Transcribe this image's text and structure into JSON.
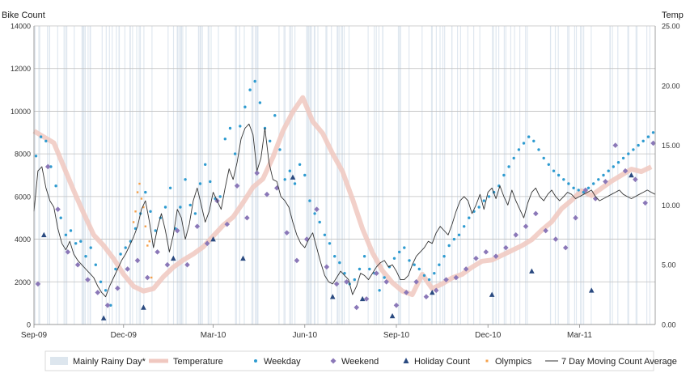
{
  "chart_data": {
    "type": "line",
    "y_left_label": "Bike Count",
    "y_right_label": "Temp",
    "y_left_ticks": [
      "0",
      "2000",
      "4000",
      "6000",
      "8000",
      "10000",
      "12000",
      "14000"
    ],
    "y_right_ticks": [
      "0.00",
      "5.00",
      "10.00",
      "15.00",
      "20.00",
      "25.00"
    ],
    "x_ticks": [
      "Sep-09",
      "Dec-09",
      "Mar-10",
      "Jun-10",
      "Sep-10",
      "Dec-10",
      "Mar-11"
    ],
    "ylim_left": [
      0,
      14000
    ],
    "ylim_right": [
      0,
      25
    ],
    "grid": "horizontal",
    "legend_position": "bottom",
    "colors": {
      "rainy": "#dde6ee",
      "temperature": "#f0c8c0",
      "weekday": "#2e9bd0",
      "weekend": "#8b78b8",
      "holiday": "#2a4a80",
      "olympics": "#f5a04a",
      "moving_avg": "#333333"
    },
    "legend": [
      {
        "label": "Mainly Rainy Day*",
        "key": "rainy"
      },
      {
        "label": "Temperature",
        "key": "temperature"
      },
      {
        "label": "Weekday",
        "key": "weekday"
      },
      {
        "label": "Weekend",
        "key": "weekend"
      },
      {
        "label": "Holiday Count",
        "key": "holiday"
      },
      {
        "label": "Olympics",
        "key": "olympics"
      },
      {
        "label": "7 Day Moving Count Average",
        "key": "moving_avg"
      }
    ],
    "series": [
      {
        "name": "7 Day Moving Count Average",
        "axis": "left",
        "x": [
          0,
          4,
          8,
          12,
          16,
          20,
          24,
          28,
          32,
          36,
          40,
          44,
          48,
          52,
          56,
          60,
          64,
          68,
          72,
          76,
          80,
          84,
          88,
          92,
          96,
          100,
          104,
          108,
          112,
          116,
          120,
          124,
          128,
          132,
          136,
          140,
          144,
          148,
          152,
          156,
          160,
          164,
          168,
          172,
          176,
          180,
          184,
          188,
          192,
          196,
          200,
          204,
          208,
          212,
          216,
          220,
          224,
          228,
          232,
          236,
          240,
          244,
          248,
          252,
          256,
          260,
          264,
          268,
          272,
          276,
          280,
          284,
          288,
          292,
          296,
          300,
          304,
          308,
          312,
          316,
          320,
          324,
          328,
          332,
          336,
          340,
          344,
          348,
          352,
          356,
          360,
          364,
          368,
          372,
          376,
          380,
          384,
          388,
          392,
          396,
          400,
          404,
          408,
          412,
          416,
          420,
          424,
          428,
          432,
          436,
          440,
          444,
          448,
          452,
          456,
          460,
          464,
          468,
          472,
          476,
          480,
          484,
          488,
          492,
          496,
          500,
          504,
          508,
          512,
          516,
          520,
          524,
          528,
          532,
          536,
          540,
          544,
          548,
          552,
          556,
          560,
          564,
          568,
          572,
          576,
          580,
          584,
          588,
          592,
          596,
          600,
          604,
          608,
          612,
          616,
          620,
          624
        ],
        "values": [
          5300,
          7200,
          7400,
          6400,
          5800,
          5500,
          4500,
          3800,
          3500,
          3900,
          3300,
          3000,
          2800,
          2600,
          2400,
          2200,
          1800,
          1500,
          1300,
          1800,
          2200,
          2600,
          3000,
          3300,
          3700,
          4100,
          4600,
          5400,
          5800,
          4800,
          3600,
          4500,
          5200,
          4400,
          3400,
          4200,
          5400,
          5000,
          4000,
          4700,
          5800,
          6400,
          5600,
          4800,
          5300,
          6200,
          5800,
          5400,
          6400,
          7300,
          6800,
          7600,
          8700,
          9200,
          9400,
          8900,
          7200,
          7800,
          9200,
          7600,
          6800,
          6700,
          6000,
          5800,
          5500,
          4800,
          4200,
          3800,
          3600,
          4000,
          4300,
          3600,
          2900,
          2300,
          2000,
          1900,
          2200,
          2500,
          2300,
          2100,
          1400,
          1800,
          2400,
          2300,
          2100,
          2400,
          2700,
          2900,
          3000,
          2700,
          2800,
          2500,
          2100,
          2100,
          2300,
          2800,
          3200,
          3400,
          3600,
          3900,
          3800,
          4300,
          4600,
          4400,
          4200,
          4700,
          5300,
          5800,
          6000,
          5800,
          5200,
          5600,
          6100,
          5400,
          6200,
          6400,
          5900,
          6500,
          6000,
          5600,
          6300,
          5800,
          5400,
          5000,
          5700,
          6200,
          6400,
          6000,
          5800,
          6100,
          6300,
          6000,
          5800,
          6000,
          6200,
          6100,
          5900,
          6000,
          6100,
          6200,
          6300,
          6000,
          5800,
          5900,
          6000,
          6100,
          6200,
          6300,
          6100,
          6000,
          5900,
          6000,
          6100,
          6200,
          6300,
          6200,
          6100
        ]
      },
      {
        "name": "Temperature",
        "axis": "right",
        "x": [
          0,
          10,
          20,
          30,
          40,
          50,
          60,
          70,
          80,
          90,
          100,
          110,
          120,
          130,
          140,
          150,
          160,
          170,
          180,
          190,
          200,
          210,
          220,
          230,
          240,
          250,
          260,
          270,
          280,
          290,
          300,
          310,
          320,
          330,
          340,
          350,
          360,
          370,
          380,
          390,
          400,
          410,
          420,
          430,
          440,
          450,
          460,
          470,
          480,
          490,
          500,
          510,
          520,
          530,
          540,
          550,
          560,
          570,
          580,
          590,
          600,
          610,
          620
        ],
        "values": [
          16.2,
          15.7,
          15.2,
          13.2,
          11.2,
          9.3,
          7.5,
          6.6,
          5.5,
          4.2,
          3.2,
          2.8,
          3.0,
          4.0,
          4.8,
          5.4,
          5.9,
          6.5,
          7.4,
          8.3,
          9.0,
          10.2,
          11.5,
          12.2,
          14.0,
          16.2,
          17.8,
          19.0,
          17.0,
          16.0,
          14.3,
          12.8,
          10.5,
          8.0,
          6.0,
          4.5,
          3.5,
          2.8,
          2.5,
          4.2,
          3.0,
          3.4,
          3.9,
          4.2,
          4.8,
          5.3,
          5.4,
          5.8,
          6.2,
          6.6,
          7.1,
          7.9,
          8.6,
          9.7,
          10.4,
          11.2,
          10.8,
          11.4,
          12.0,
          12.5,
          13.0,
          12.8,
          13.2
        ]
      },
      {
        "name": "Weekday",
        "axis": "left",
        "x": [
          2,
          7,
          12,
          17,
          22,
          27,
          32,
          37,
          42,
          47,
          52,
          57,
          62,
          67,
          72,
          77,
          82,
          87,
          92,
          97,
          102,
          107,
          112,
          117,
          122,
          127,
          132,
          137,
          142,
          147,
          152,
          157,
          162,
          167,
          172,
          177,
          182,
          187,
          192,
          197,
          202,
          207,
          212,
          217,
          222,
          227,
          232,
          237,
          242,
          247,
          252,
          257,
          262,
          267,
          272,
          277,
          282,
          287,
          292,
          297,
          302,
          307,
          312,
          317,
          322,
          327,
          332,
          337,
          342,
          347,
          352,
          357,
          362,
          367,
          372,
          377,
          382,
          387,
          392,
          397,
          402,
          407,
          412,
          417,
          422,
          427,
          432,
          437,
          442,
          447,
          452,
          457,
          462,
          467,
          472,
          477,
          482,
          487,
          492,
          497,
          502,
          507,
          512,
          517,
          522,
          527,
          532,
          537,
          542,
          547,
          552,
          557,
          562,
          567,
          572,
          577,
          582,
          587,
          592,
          597,
          602,
          607,
          612,
          617,
          622
        ],
        "values": [
          7900,
          8800,
          8600,
          7400,
          6500,
          5000,
          4200,
          4400,
          3800,
          3900,
          3200,
          3600,
          2800,
          2000,
          1600,
          900,
          2600,
          3300,
          3600,
          3900,
          4500,
          5200,
          6200,
          5300,
          4400,
          5000,
          5500,
          6400,
          4500,
          5500,
          6800,
          5600,
          5200,
          6600,
          7500,
          6700,
          5900,
          6000,
          8700,
          9200,
          8000,
          9300,
          10200,
          11000,
          11400,
          10400,
          9200,
          8600,
          9800,
          8200,
          6800,
          7200,
          6600,
          7500,
          7000,
          5800,
          5200,
          4800,
          4200,
          3800,
          3200,
          2900,
          2400,
          1900,
          2100,
          2600,
          3200,
          2600,
          2400,
          1600,
          2200,
          2700,
          3100,
          3400,
          3600,
          3000,
          2800,
          2600,
          2300,
          2100,
          2400,
          2800,
          3200,
          3700,
          4000,
          4200,
          4600,
          5000,
          5300,
          5500,
          5800,
          6000,
          6200,
          6500,
          7000,
          7400,
          7800,
          8200,
          8500,
          8800,
          8600,
          8200,
          7800,
          7500,
          7200,
          7000,
          6800,
          6600,
          6400,
          6300,
          6200,
          6400,
          6600,
          6800,
          7000,
          7200,
          7400,
          7600,
          7800,
          8000,
          8200,
          8400,
          8600,
          8800,
          9000
        ]
      },
      {
        "name": "Weekend",
        "axis": "left",
        "x": [
          4,
          14,
          24,
          34,
          44,
          54,
          64,
          74,
          84,
          94,
          104,
          114,
          124,
          134,
          144,
          154,
          164,
          174,
          184,
          194,
          204,
          214,
          224,
          234,
          244,
          254,
          264,
          274,
          284,
          294,
          304,
          314,
          324,
          334,
          344,
          354,
          364,
          374,
          384,
          394,
          404,
          414,
          424,
          434,
          444,
          454,
          464,
          474,
          484,
          494,
          504,
          514,
          524,
          534,
          544,
          554,
          564,
          574,
          584,
          594,
          604,
          614,
          622
        ],
        "values": [
          1900,
          7400,
          5400,
          3400,
          2800,
          2100,
          1500,
          900,
          1700,
          2600,
          3000,
          2200,
          3400,
          2800,
          4400,
          2800,
          4600,
          3800,
          5800,
          4700,
          6500,
          5000,
          7100,
          6100,
          6400,
          4300,
          3000,
          4000,
          5400,
          2700,
          1900,
          2000,
          800,
          1200,
          2400,
          2000,
          900,
          1500,
          2000,
          1300,
          1600,
          2100,
          2200,
          2600,
          3100,
          3400,
          3200,
          3600,
          4200,
          4600,
          5200,
          4400,
          4000,
          3600,
          5000,
          6300,
          5900,
          6700,
          8400,
          7200,
          6800,
          5700,
          8500
        ]
      },
      {
        "name": "Holiday Count",
        "axis": "left",
        "x": [
          10,
          70,
          110,
          140,
          180,
          210,
          260,
          300,
          330,
          360,
          400,
          460,
          500,
          560,
          600
        ],
        "values": [
          4200,
          300,
          800,
          3100,
          4000,
          3100,
          6900,
          1300,
          1200,
          400,
          1500,
          1400,
          2500,
          1600,
          7000
        ]
      },
      {
        "name": "Olympics",
        "axis": "left",
        "x": [
          100,
          102,
          104,
          106,
          108,
          110,
          112,
          114,
          116,
          118
        ],
        "values": [
          4800,
          5300,
          6200,
          6600,
          5900,
          5500,
          4600,
          3700,
          3900,
          2200
        ]
      }
    ]
  }
}
